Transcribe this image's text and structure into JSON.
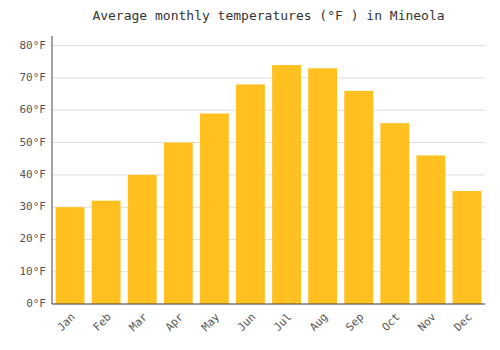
{
  "chart_data": {
    "type": "bar",
    "title": "Average monthly temperatures (°F ) in Mineola",
    "categories": [
      "Jan",
      "Feb",
      "Mar",
      "Apr",
      "May",
      "Jun",
      "Jul",
      "Aug",
      "Sep",
      "Oct",
      "Nov",
      "Dec"
    ],
    "values": [
      30,
      32,
      40,
      50,
      59,
      68,
      74,
      73,
      66,
      56,
      46,
      35
    ],
    "color": "#FFC020",
    "ylim": [
      0,
      83
    ],
    "yticks": [
      {
        "value": 0,
        "label": "0°F"
      },
      {
        "value": 10,
        "label": "10°F"
      },
      {
        "value": 20,
        "label": "20°F"
      },
      {
        "value": 30,
        "label": "30°F"
      },
      {
        "value": 40,
        "label": "40°F"
      },
      {
        "value": 50,
        "label": "50°F"
      },
      {
        "value": 60,
        "label": "60°F"
      },
      {
        "value": 70,
        "label": "70°F"
      },
      {
        "value": 80,
        "label": "80°F"
      }
    ],
    "grid": true
  }
}
